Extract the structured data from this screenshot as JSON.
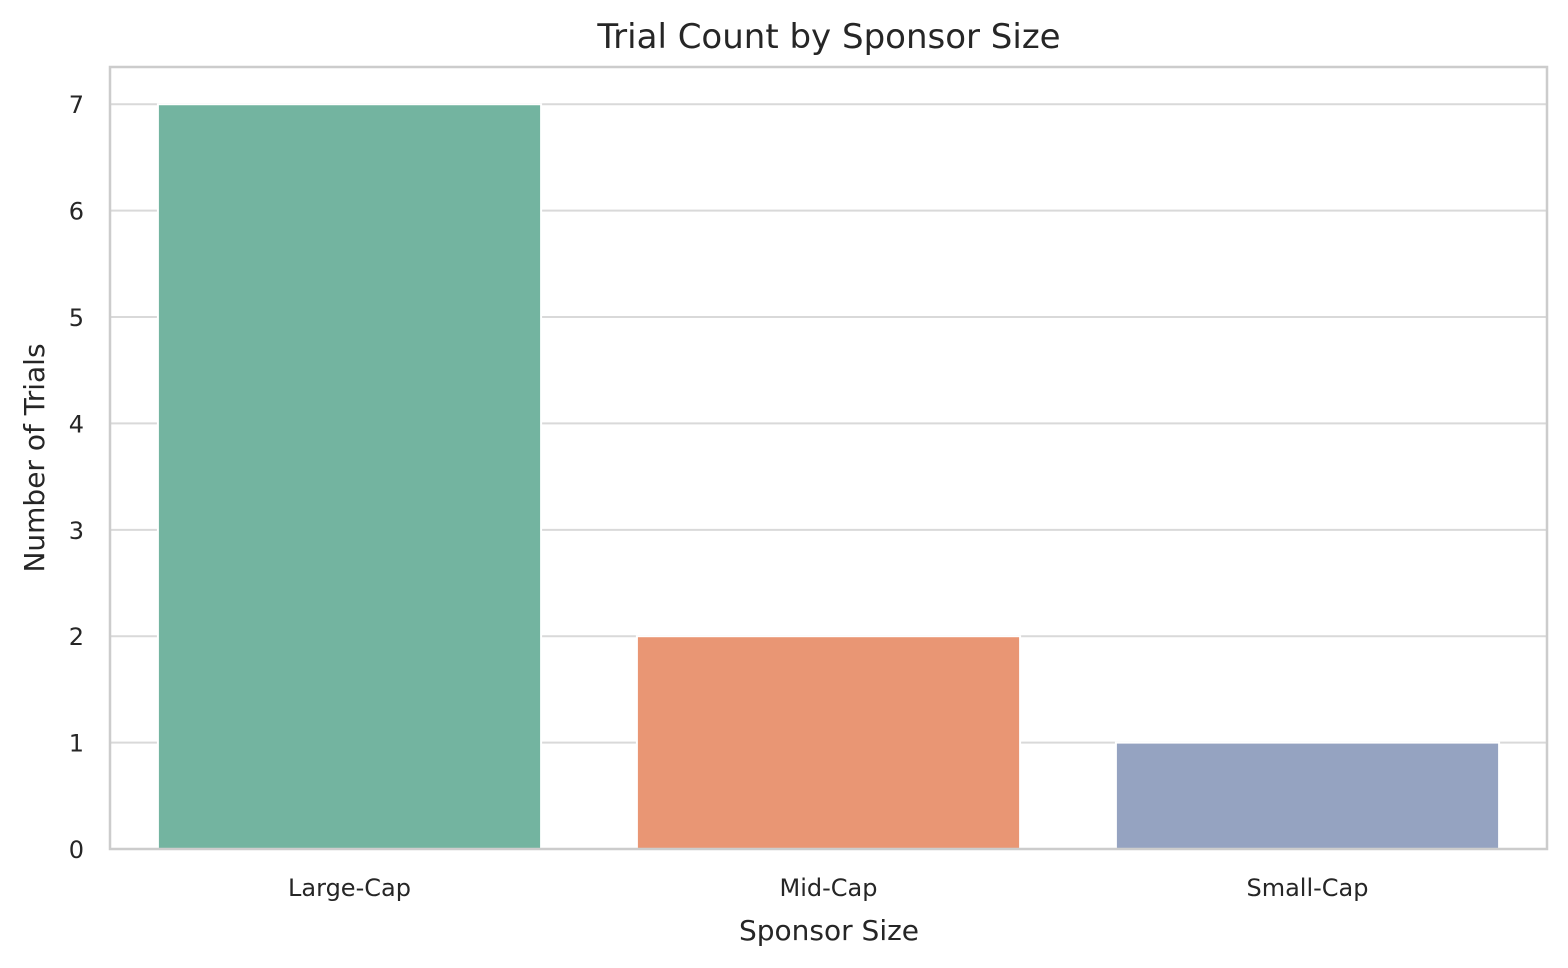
{
  "chart_data": {
    "type": "bar",
    "title": "Trial Count by Sponsor Size",
    "xlabel": "Sponsor Size",
    "ylabel": "Number of Trials",
    "categories": [
      "Large-Cap",
      "Mid-Cap",
      "Small-Cap"
    ],
    "values": [
      7,
      2,
      1
    ],
    "colors": [
      "#73b4a0",
      "#e99674",
      "#95a3c1"
    ],
    "ylim": [
      0,
      7.35
    ],
    "yticks": [
      "0",
      "1",
      "2",
      "3",
      "4",
      "5",
      "6",
      "7"
    ],
    "grid": true,
    "grid_color": "#d9d9d9",
    "axis_color": "#cccccc"
  }
}
